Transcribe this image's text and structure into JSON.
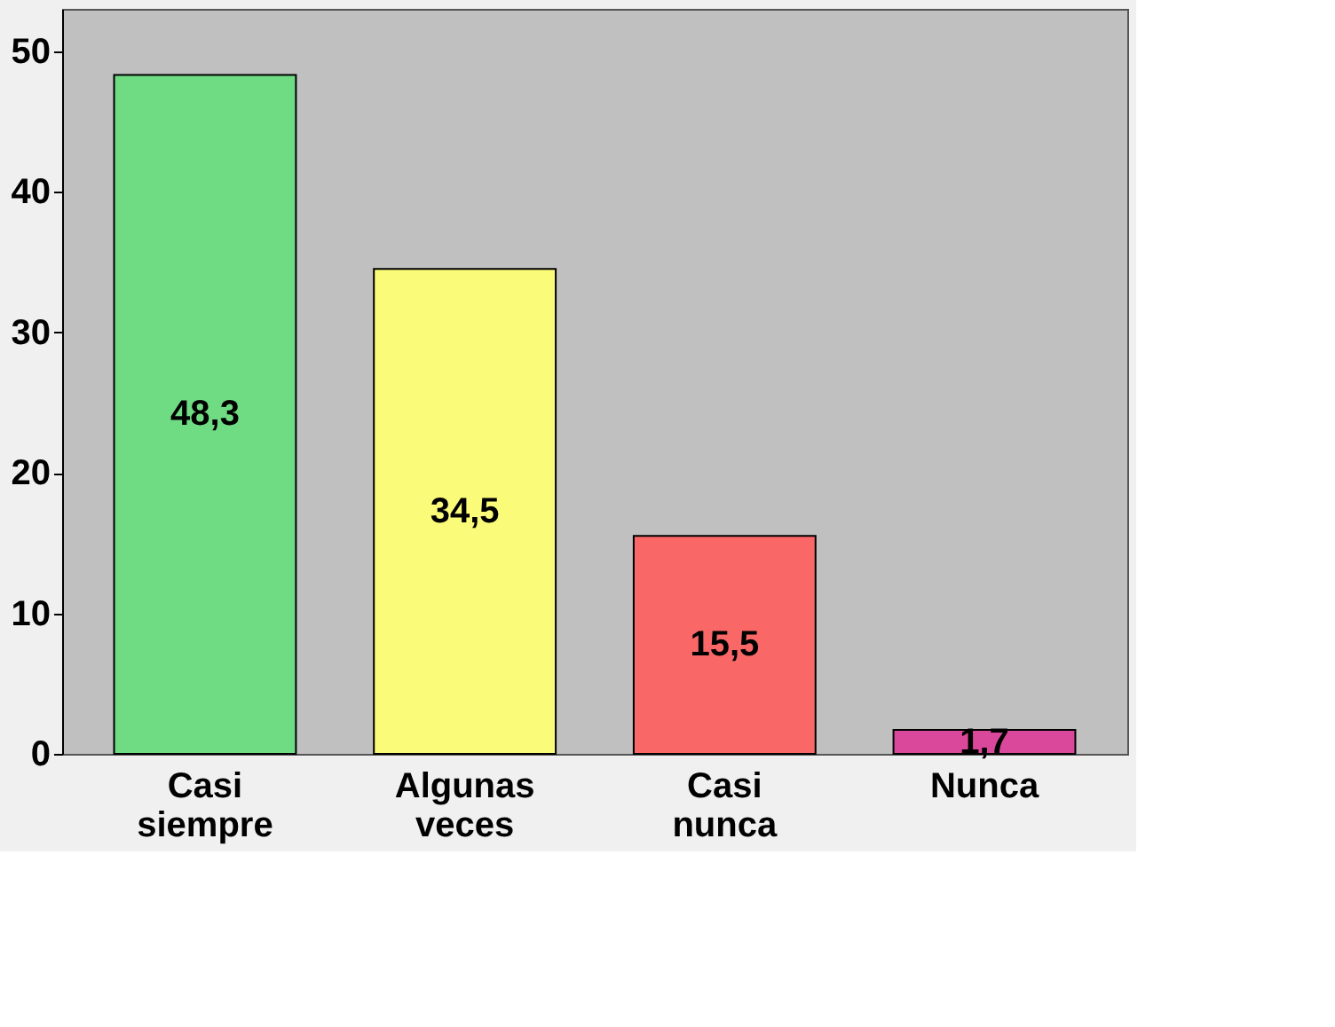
{
  "chart_data": {
    "type": "bar",
    "categories": [
      "Casi siempre",
      "Algunas veces",
      "Casi nunca",
      "Nunca"
    ],
    "values": [
      48.3,
      34.5,
      15.5,
      1.7
    ],
    "colors": [
      "#6fdc84",
      "#fbfb7a",
      "#f96767",
      "#d9489a"
    ],
    "value_labels": [
      "48,3",
      "34,5",
      "15,5",
      "1,7"
    ],
    "ylim": [
      0,
      53
    ],
    "yticks": [
      0,
      10,
      20,
      30,
      40,
      50
    ],
    "grid": false,
    "legend": false
  }
}
